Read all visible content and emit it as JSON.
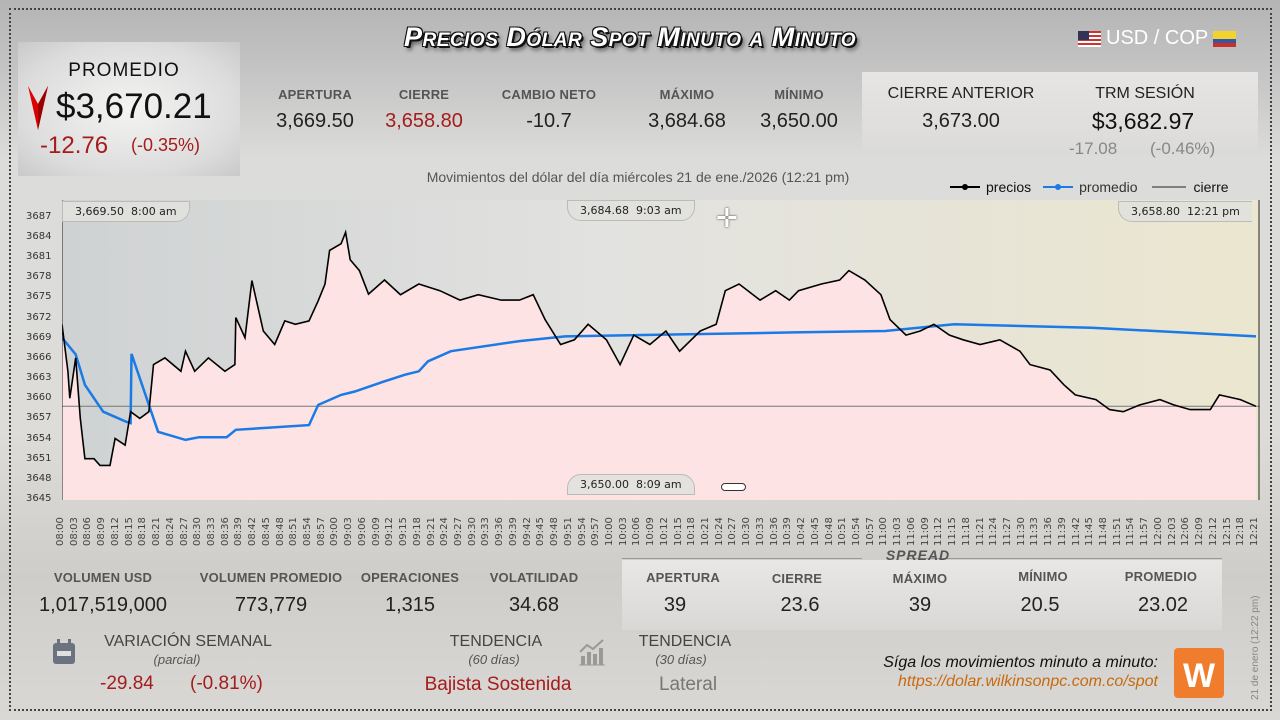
{
  "header": {
    "title": "Precios Dólar Spot Minuto a Minuto",
    "pair": "USD / COP",
    "flag_left": "us-flag-icon",
    "flag_right": "colombia-flag-icon"
  },
  "promedio": {
    "label": "PROMEDIO",
    "value": "$3,670.21",
    "change": "-12.76",
    "change_pct": "(-0.35%)",
    "trend_icon": "down-arrow-icon"
  },
  "stats": [
    {
      "label": "APERTURA",
      "value": "3,669.50"
    },
    {
      "label": "CIERRE",
      "value": "3,658.80"
    },
    {
      "label": "CAMBIO NETO",
      "value": "-10.7"
    },
    {
      "label": "MÁXIMO",
      "value": "3,684.68"
    },
    {
      "label": "MÍNIMO",
      "value": "3,650.00"
    }
  ],
  "cierre_anterior": {
    "label": "CIERRE ANTERIOR",
    "value": "3,673.00"
  },
  "trm": {
    "label": "TRM SESIÓN",
    "value": "$3,682.97",
    "change": "-17.08",
    "change_pct": "(-0.46%)"
  },
  "colors": {
    "price": "#000000",
    "average": "#1a7ae6",
    "close": "#555555",
    "down": "#a51c1c",
    "area": "#fde3e3",
    "brand": "#ef7d2d"
  },
  "chart_data": {
    "type": "line",
    "title": "Movimientos del dólar del día miércoles 21 de ene./2026 (12:21 pm)",
    "legend": [
      "precios",
      "promedio",
      "cierre"
    ],
    "legend_position": "top-right",
    "ylim": [
      3645,
      3689.5
    ],
    "xlim_minutes": [
      0,
      261
    ],
    "y_ticks": [
      "3645",
      "3648",
      "3651",
      "3654",
      "3657",
      "3660",
      "3663",
      "3666",
      "3669",
      "3672",
      "3675",
      "3678",
      "3681",
      "3684",
      "3687"
    ],
    "x_ticks": [
      "08:00",
      "08:03",
      "08:06",
      "08:09",
      "08:12",
      "08:15",
      "08:18",
      "08:21",
      "08:24",
      "08:27",
      "08:30",
      "08:33",
      "08:36",
      "08:39",
      "08:42",
      "08:45",
      "08:48",
      "08:51",
      "08:54",
      "08:57",
      "09:00",
      "09:03",
      "09:06",
      "09:09",
      "09:12",
      "09:15",
      "09:18",
      "09:21",
      "09:24",
      "09:27",
      "09:30",
      "09:33",
      "09:36",
      "09:39",
      "09:42",
      "09:45",
      "09:48",
      "09:51",
      "09:54",
      "09:57",
      "10:00",
      "10:03",
      "10:06",
      "10:09",
      "10:12",
      "10:15",
      "10:18",
      "10:21",
      "10:24",
      "10:27",
      "10:30",
      "10:33",
      "10:36",
      "10:39",
      "10:42",
      "10:45",
      "10:48",
      "10:51",
      "10:54",
      "10:57",
      "11:00",
      "11:03",
      "11:06",
      "11:09",
      "11:12",
      "11:15",
      "11:18",
      "11:21",
      "11:24",
      "11:27",
      "11:30",
      "11:33",
      "11:36",
      "11:39",
      "11:42",
      "11:45",
      "11:48",
      "11:51",
      "11:54",
      "11:57",
      "12:00",
      "12:03",
      "12:06",
      "12:09",
      "12:12",
      "12:15",
      "12:18",
      "12:21"
    ],
    "close_value": 3658.8,
    "series": [
      {
        "name": "precios",
        "points": [
          [
            0,
            3671
          ],
          [
            1.3,
            3664
          ],
          [
            1.7,
            3660
          ],
          [
            3,
            3666
          ],
          [
            4,
            3657
          ],
          [
            5,
            3651
          ],
          [
            7,
            3651
          ],
          [
            8.3,
            3650
          ],
          [
            10.5,
            3650
          ],
          [
            11.6,
            3654
          ],
          [
            13.8,
            3653
          ],
          [
            15,
            3658
          ],
          [
            17,
            3657
          ],
          [
            19,
            3658
          ],
          [
            20,
            3665
          ],
          [
            22.5,
            3666
          ],
          [
            26,
            3664
          ],
          [
            27,
            3667
          ],
          [
            29,
            3664
          ],
          [
            32,
            3666
          ],
          [
            35.6,
            3664
          ],
          [
            37.8,
            3665
          ],
          [
            38,
            3672
          ],
          [
            40,
            3669
          ],
          [
            41.5,
            3677.5
          ],
          [
            44,
            3670
          ],
          [
            46.5,
            3668
          ],
          [
            48.7,
            3671.5
          ],
          [
            51,
            3671
          ],
          [
            54,
            3671.5
          ],
          [
            56,
            3674.5
          ],
          [
            57.5,
            3677
          ],
          [
            58.5,
            3682
          ],
          [
            61,
            3683
          ],
          [
            62,
            3684.7
          ],
          [
            63,
            3680.6
          ],
          [
            65,
            3679
          ],
          [
            67,
            3675.5
          ],
          [
            70.5,
            3677.6
          ],
          [
            74,
            3675.4
          ],
          [
            78,
            3677
          ],
          [
            82.6,
            3676
          ],
          [
            87,
            3674.6
          ],
          [
            91,
            3675.4
          ],
          [
            96,
            3674.6
          ],
          [
            100,
            3674.6
          ],
          [
            103,
            3675.4
          ],
          [
            105.6,
            3671.7
          ],
          [
            109,
            3668
          ],
          [
            112,
            3668.7
          ],
          [
            115,
            3671
          ],
          [
            119,
            3668.7
          ],
          [
            122,
            3665
          ],
          [
            125,
            3669.4
          ],
          [
            128.5,
            3668
          ],
          [
            132,
            3670
          ],
          [
            135,
            3667
          ],
          [
            139.5,
            3670
          ],
          [
            143,
            3671
          ],
          [
            145,
            3676
          ],
          [
            148,
            3677
          ],
          [
            152.6,
            3674.6
          ],
          [
            156,
            3676
          ],
          [
            159,
            3674.6
          ],
          [
            161,
            3676
          ],
          [
            166,
            3677
          ],
          [
            170,
            3677.6
          ],
          [
            172,
            3679
          ],
          [
            175.5,
            3677.6
          ],
          [
            179,
            3675.4
          ],
          [
            181,
            3671.7
          ],
          [
            184.5,
            3669.4
          ],
          [
            187.6,
            3670
          ],
          [
            190.6,
            3671
          ],
          [
            194,
            3669.4
          ],
          [
            197,
            3668.7
          ],
          [
            200.7,
            3668
          ],
          [
            205,
            3668.7
          ],
          [
            209.4,
            3667
          ],
          [
            211.6,
            3665
          ],
          [
            216,
            3664.2
          ],
          [
            219,
            3662
          ],
          [
            221.5,
            3660.5
          ],
          [
            226,
            3659.8
          ],
          [
            229,
            3658.3
          ],
          [
            232,
            3658
          ],
          [
            235.6,
            3659
          ],
          [
            240,
            3659.8
          ],
          [
            243,
            3659
          ],
          [
            246.6,
            3658.3
          ],
          [
            251,
            3658.3
          ],
          [
            253,
            3660.5
          ],
          [
            257.6,
            3659.8
          ],
          [
            261,
            3658.8
          ]
        ]
      },
      {
        "name": "promedio",
        "points": [
          [
            0,
            3669
          ],
          [
            3,
            3666.5
          ],
          [
            5,
            3662
          ],
          [
            9,
            3658
          ],
          [
            14,
            3656.5
          ],
          [
            15,
            3656.3
          ],
          [
            15.2,
            3666.6
          ],
          [
            21,
            3655
          ],
          [
            27,
            3653.8
          ],
          [
            30,
            3654.2
          ],
          [
            36,
            3654.2
          ],
          [
            38,
            3655.3
          ],
          [
            54,
            3656
          ],
          [
            56,
            3659
          ],
          [
            61,
            3660.5
          ],
          [
            64,
            3661
          ],
          [
            70,
            3662.4
          ],
          [
            75,
            3663.5
          ],
          [
            78,
            3664
          ],
          [
            80,
            3665.5
          ],
          [
            85,
            3667
          ],
          [
            100,
            3668.5
          ],
          [
            110,
            3669.2
          ],
          [
            160,
            3669.8
          ],
          [
            180,
            3670
          ],
          [
            195,
            3671
          ],
          [
            225,
            3670.5
          ],
          [
            261,
            3669.2
          ]
        ]
      }
    ],
    "annotations": {
      "open": {
        "value": "3,669.50",
        "time": "8:00 am"
      },
      "max": {
        "value": "3,684.68",
        "time": "9:03 am"
      },
      "min": {
        "value": "3,650.00",
        "time": "8:09 am"
      },
      "close": {
        "value": "3,658.80",
        "time": "12:21 pm"
      }
    }
  },
  "bottom_stats": [
    {
      "label": "VOLUMEN USD",
      "value": "1,017,519,000"
    },
    {
      "label": "VOLUMEN PROMEDIO",
      "value": "773,779"
    },
    {
      "label": "OPERACIONES",
      "value": "1,315"
    },
    {
      "label": "VOLATILIDAD",
      "value": "34.68"
    }
  ],
  "spread": {
    "title": "SPREAD",
    "items": [
      {
        "label": "APERTURA",
        "value": "39"
      },
      {
        "label": "CIERRE",
        "value": "23.6"
      },
      {
        "label": "MÁXIMO",
        "value": "39"
      },
      {
        "label": "MÍNIMO",
        "value": "20.5"
      },
      {
        "label": "PROMEDIO",
        "value": "23.02"
      }
    ]
  },
  "weekly": {
    "label": "VARIACIÓN SEMANAL",
    "sub": "(parcial)",
    "change": "-29.84",
    "change_pct": "(-0.81%)"
  },
  "trend60": {
    "label": "TENDENCIA",
    "sub": "(60 días)",
    "value": "Bajista Sostenida"
  },
  "trend30": {
    "label": "TENDENCIA",
    "sub": "(30 días)",
    "value": "Lateral"
  },
  "footer": {
    "cta": "Síga los movimientos minuto a minuto:",
    "url": "https://dolar.wilkinsonpc.com.co/spot",
    "stamp": "21 de enero (12:22 pm)",
    "logo_text": "W"
  }
}
